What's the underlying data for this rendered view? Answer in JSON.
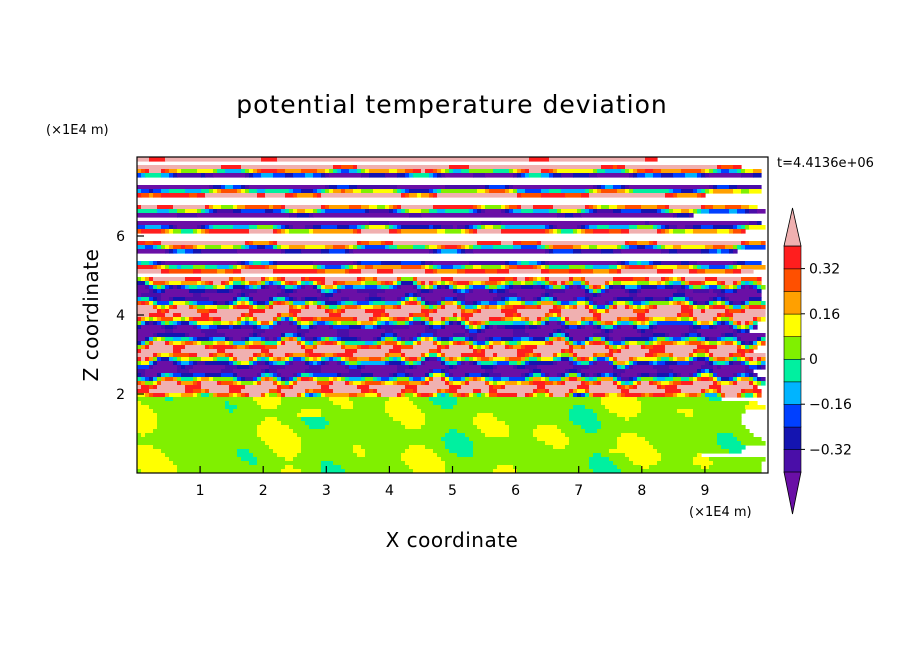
{
  "chart_data": {
    "type": "heatmap",
    "title": "potential temperature deviation",
    "xlabel": "X coordinate",
    "ylabel": "Z coordinate",
    "x_unit": "(×1E4 m)",
    "z_unit": "(×1E4 m)",
    "time_label": "t=4.4136e+06",
    "xlim": [
      0,
      10
    ],
    "zlim": [
      0,
      8
    ],
    "x_ticks": [
      1,
      2,
      3,
      4,
      5,
      6,
      7,
      8,
      9
    ],
    "z_ticks": [
      2,
      4,
      6
    ],
    "colorbar": {
      "levels": [
        -0.4,
        -0.32,
        -0.24,
        -0.16,
        -0.08,
        0,
        0.08,
        0.16,
        0.24,
        0.32,
        0.4
      ],
      "labels": [
        "0.32",
        "0.16",
        "0",
        "-0.16",
        "-0.32"
      ],
      "label_values": [
        0.32,
        0.16,
        0,
        -0.16,
        -0.32
      ],
      "colors": [
        "#6a0fa6",
        "#4a0ea8",
        "#1414b0",
        "#0040ff",
        "#00b4ff",
        "#00f0a0",
        "#80f000",
        "#ffff00",
        "#ffa000",
        "#ff5000",
        "#ff1e1e",
        "#f0b0b0"
      ],
      "extend": "both"
    },
    "grid": false
  }
}
